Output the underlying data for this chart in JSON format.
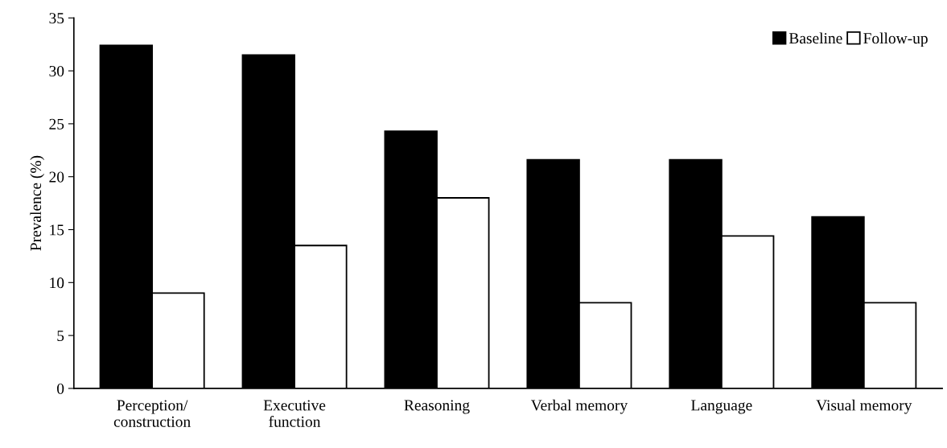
{
  "chart_data": {
    "type": "bar",
    "ylabel": "Prevalence (%)",
    "categories": [
      "Perception/\nconstruction",
      "Executive\nfunction",
      "Reasoning",
      "Verbal memory",
      "Language",
      "Visual memory"
    ],
    "series": [
      {
        "name": "Baseline",
        "color": "#000000",
        "values": [
          32.4,
          31.5,
          24.3,
          21.6,
          21.6,
          16.2
        ]
      },
      {
        "name": "Follow-up",
        "color": "#ffffff",
        "values": [
          9.0,
          13.5,
          18.0,
          8.1,
          14.4,
          8.1
        ]
      }
    ],
    "ylim": [
      0,
      35
    ],
    "yticks": [
      0,
      5,
      10,
      15,
      20,
      25,
      30,
      35
    ],
    "grid": false,
    "legend": "top right"
  }
}
